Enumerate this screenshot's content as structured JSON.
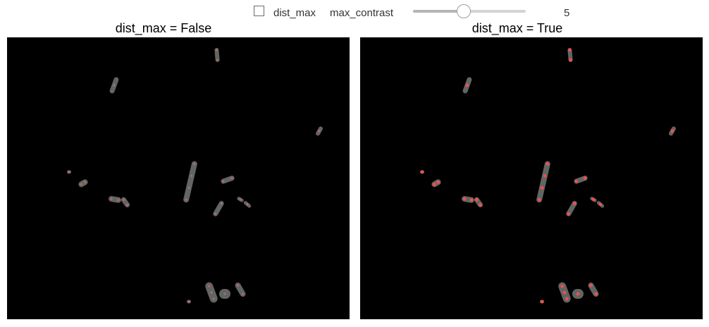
{
  "controls": {
    "checkbox_label": "dist_max",
    "checkbox_checked": false,
    "slider_label": "max_contrast",
    "slider_value": "5",
    "slider_fraction": 0.45
  },
  "panels": [
    {
      "title": "dist_max = False"
    },
    {
      "title": "dist_max = True"
    }
  ],
  "colors": {
    "background": "#000000",
    "blob": "#5f6664",
    "marker_false": "#e06060",
    "marker_true": "#ff4a4a"
  }
}
